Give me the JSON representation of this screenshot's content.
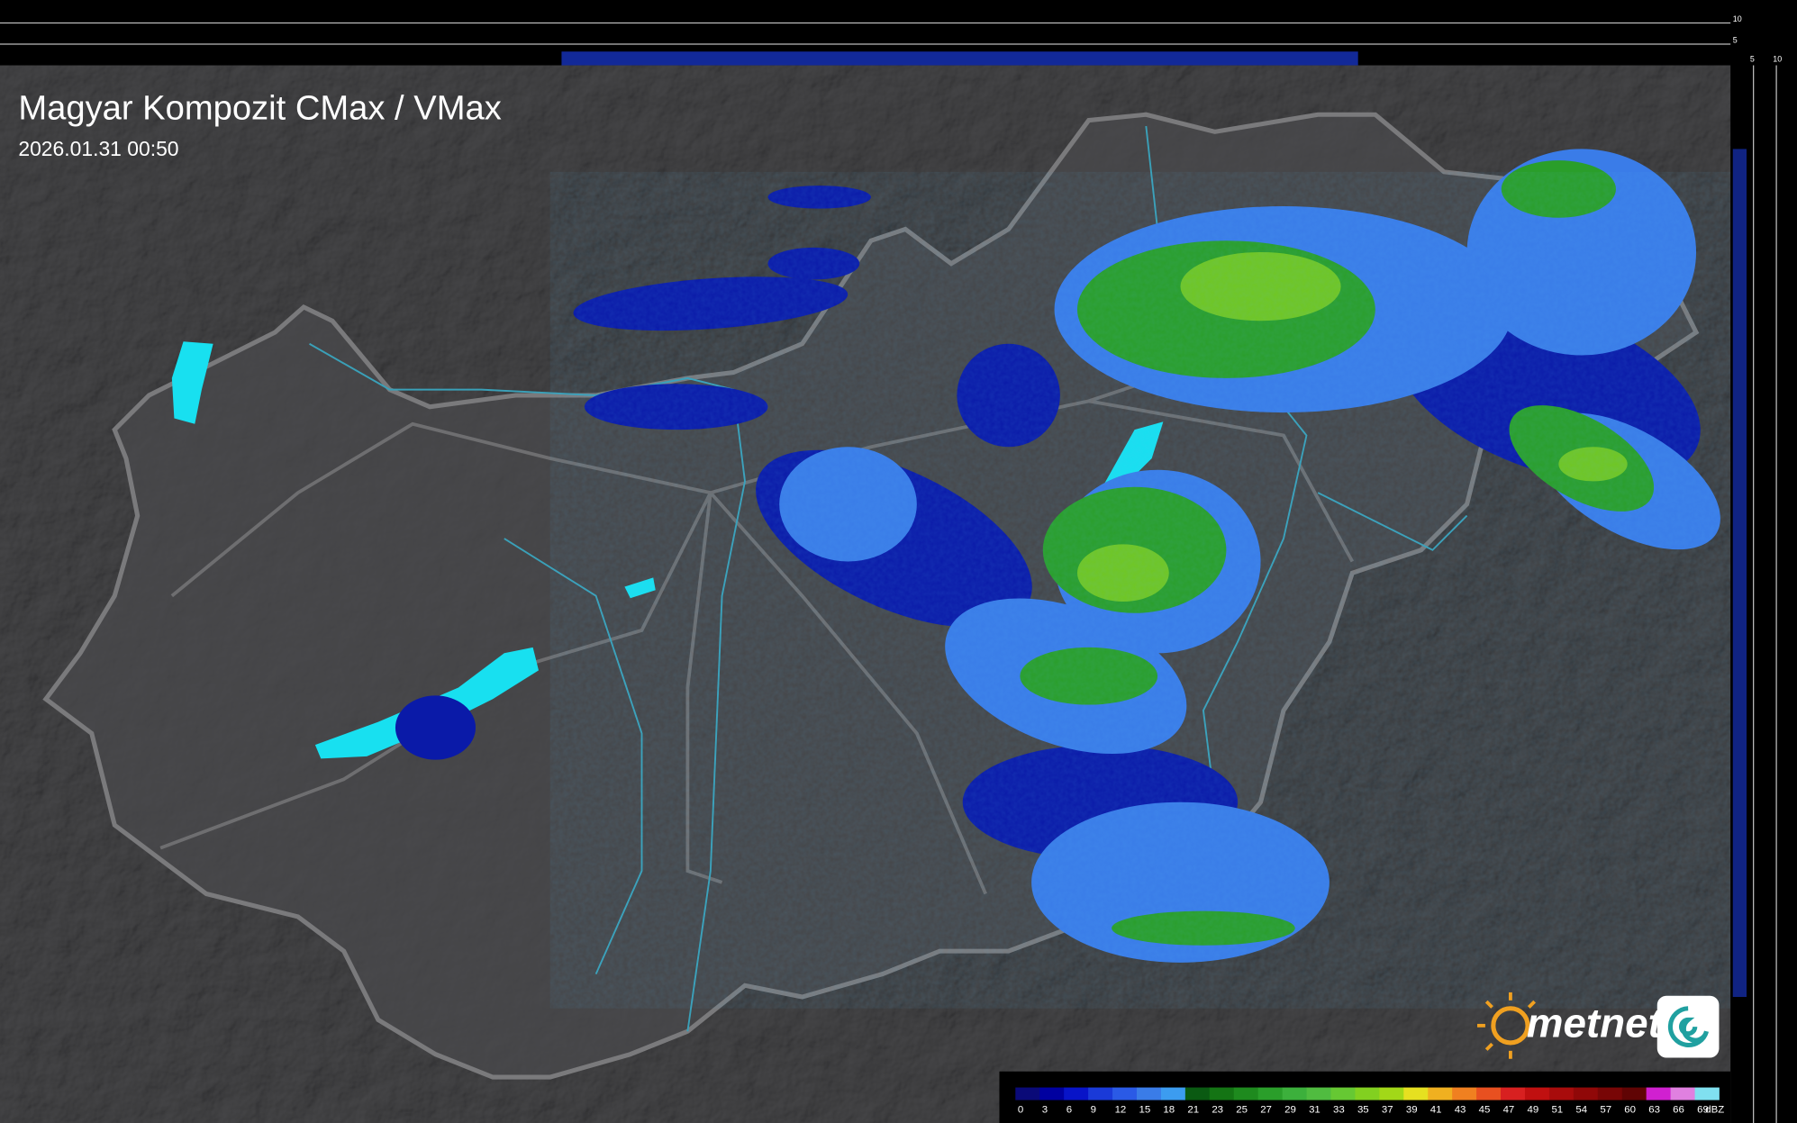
{
  "header": {
    "title": "Magyar Kompozit CMax / VMax",
    "timestamp": "2026.01.31 00:50"
  },
  "logo": {
    "text": "metnet"
  },
  "profile": {
    "top_ticks": [
      10,
      5
    ],
    "side_ticks": [
      5,
      10
    ]
  },
  "legend": {
    "unit": "dBZ",
    "steps": [
      {
        "value": 0,
        "color": "#0a0a78"
      },
      {
        "value": 3,
        "color": "#0000a0"
      },
      {
        "value": 6,
        "color": "#0814c8"
      },
      {
        "value": 9,
        "color": "#1a3ad8"
      },
      {
        "value": 12,
        "color": "#2a5ae6"
      },
      {
        "value": 15,
        "color": "#3a7ce8"
      },
      {
        "value": 18,
        "color": "#3c9cf0"
      },
      {
        "value": 21,
        "color": "#0a5a12"
      },
      {
        "value": 23,
        "color": "#147414"
      },
      {
        "value": 25,
        "color": "#1e8a1e"
      },
      {
        "value": 27,
        "color": "#2a9e2a"
      },
      {
        "value": 29,
        "color": "#3cb03c"
      },
      {
        "value": 31,
        "color": "#50bc40"
      },
      {
        "value": 33,
        "color": "#66c833"
      },
      {
        "value": 35,
        "color": "#82d020"
      },
      {
        "value": 37,
        "color": "#a2d818"
      },
      {
        "value": 39,
        "color": "#e6e020"
      },
      {
        "value": 41,
        "color": "#f0b020"
      },
      {
        "value": 43,
        "color": "#f08020"
      },
      {
        "value": 45,
        "color": "#e85020"
      },
      {
        "value": 47,
        "color": "#d82020"
      },
      {
        "value": 49,
        "color": "#c01010"
      },
      {
        "value": 51,
        "color": "#a80c0c"
      },
      {
        "value": 54,
        "color": "#900808"
      },
      {
        "value": 57,
        "color": "#780606"
      },
      {
        "value": 60,
        "color": "#600404"
      },
      {
        "value": 63,
        "color": "#d020d0"
      },
      {
        "value": 66,
        "color": "#e080e0"
      },
      {
        "value": 69,
        "color": "#80e0f0"
      }
    ]
  }
}
